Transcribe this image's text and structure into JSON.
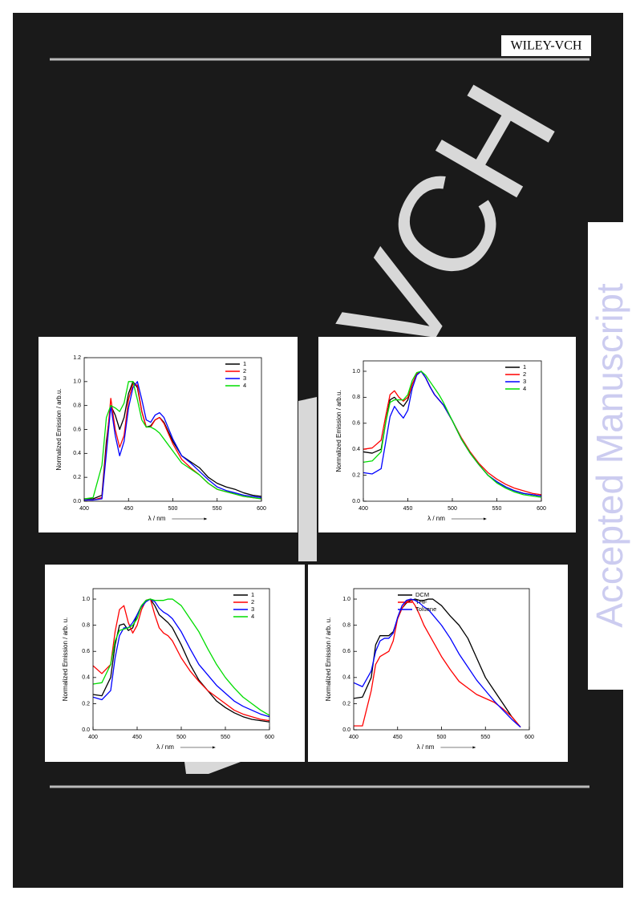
{
  "header": {
    "publisher": "WILEY-VCH"
  },
  "watermark": {
    "side": "Accepted Manuscript",
    "diagonal": "VCH"
  },
  "chart_data": [
    {
      "type": "line",
      "xlabel": "λ / nm",
      "ylabel": "Normalized Emission / arb.u.",
      "legend": "upper right",
      "xlim": [
        400,
        600
      ],
      "xticks": [
        400,
        450,
        500,
        550,
        600
      ],
      "ylim": [
        0,
        1.2
      ],
      "yticks": [
        {
          "value": 0,
          "label": "0.0"
        },
        0.2,
        0.4,
        0.6,
        0.8,
        {
          "value": 1,
          "label": "1.0"
        },
        1.2
      ],
      "x": [
        400,
        410,
        420,
        425,
        430,
        435,
        440,
        445,
        450,
        455,
        460,
        465,
        470,
        475,
        480,
        485,
        490,
        500,
        510,
        520,
        530,
        540,
        550,
        560,
        570,
        580,
        590,
        600
      ],
      "series": [
        {
          "name": "1",
          "color": "#000000",
          "values": [
            0.02,
            0.02,
            0.05,
            0.5,
            0.8,
            0.72,
            0.6,
            0.7,
            0.9,
            1.0,
            0.95,
            0.75,
            0.62,
            0.63,
            0.68,
            0.7,
            0.66,
            0.5,
            0.38,
            0.33,
            0.28,
            0.2,
            0.15,
            0.12,
            0.1,
            0.07,
            0.05,
            0.04
          ]
        },
        {
          "name": "2",
          "color": "#ff0000",
          "values": [
            0.01,
            0.01,
            0.03,
            0.45,
            0.86,
            0.6,
            0.45,
            0.55,
            0.85,
            0.98,
            0.97,
            0.75,
            0.62,
            0.62,
            0.68,
            0.7,
            0.65,
            0.48,
            0.35,
            0.28,
            0.22,
            0.15,
            0.1,
            0.08,
            0.06,
            0.04,
            0.03,
            0.02
          ]
        },
        {
          "name": "3",
          "color": "#0000ff",
          "values": [
            0.01,
            0.01,
            0.02,
            0.4,
            0.8,
            0.55,
            0.38,
            0.5,
            0.78,
            0.95,
            1.0,
            0.85,
            0.68,
            0.66,
            0.72,
            0.74,
            0.7,
            0.52,
            0.38,
            0.32,
            0.25,
            0.18,
            0.12,
            0.09,
            0.07,
            0.05,
            0.04,
            0.03
          ]
        },
        {
          "name": "4",
          "color": "#00dd00",
          "values": [
            0.02,
            0.03,
            0.3,
            0.7,
            0.8,
            0.78,
            0.75,
            0.82,
            1.0,
            1.0,
            0.85,
            0.68,
            0.62,
            0.62,
            0.6,
            0.57,
            0.52,
            0.42,
            0.32,
            0.27,
            0.22,
            0.15,
            0.1,
            0.08,
            0.06,
            0.04,
            0.03,
            0.02
          ]
        }
      ]
    },
    {
      "type": "line",
      "xlabel": "λ / nm",
      "ylabel": "Normalized Emission / arb.u.",
      "legend": "upper right",
      "xlim": [
        400,
        600
      ],
      "xticks": [
        400,
        450,
        500,
        550,
        600
      ],
      "ylim": [
        0,
        1.08
      ],
      "yticks": [
        {
          "value": 0,
          "label": "0.0"
        },
        0.2,
        0.4,
        0.6,
        0.8,
        {
          "value": 1,
          "label": "1.0"
        }
      ],
      "x": [
        400,
        410,
        420,
        425,
        430,
        435,
        440,
        445,
        450,
        455,
        460,
        465,
        470,
        475,
        480,
        485,
        490,
        500,
        510,
        520,
        530,
        540,
        550,
        560,
        570,
        580,
        590,
        600
      ],
      "series": [
        {
          "name": "1",
          "color": "#000000",
          "values": [
            0.38,
            0.37,
            0.4,
            0.6,
            0.78,
            0.8,
            0.76,
            0.73,
            0.78,
            0.9,
            0.98,
            1.0,
            0.95,
            0.88,
            0.82,
            0.78,
            0.74,
            0.62,
            0.48,
            0.37,
            0.28,
            0.2,
            0.15,
            0.11,
            0.08,
            0.06,
            0.05,
            0.04
          ]
        },
        {
          "name": "2",
          "color": "#ff0000",
          "values": [
            0.4,
            0.41,
            0.47,
            0.65,
            0.82,
            0.85,
            0.8,
            0.77,
            0.8,
            0.9,
            0.98,
            1.0,
            0.95,
            0.88,
            0.82,
            0.78,
            0.74,
            0.62,
            0.49,
            0.38,
            0.29,
            0.22,
            0.17,
            0.13,
            0.1,
            0.08,
            0.06,
            0.05
          ]
        },
        {
          "name": "3",
          "color": "#0000ff",
          "values": [
            0.22,
            0.21,
            0.25,
            0.45,
            0.65,
            0.73,
            0.68,
            0.64,
            0.7,
            0.87,
            0.97,
            1.0,
            0.95,
            0.88,
            0.82,
            0.78,
            0.74,
            0.62,
            0.48,
            0.37,
            0.28,
            0.2,
            0.15,
            0.11,
            0.08,
            0.06,
            0.05,
            0.04
          ]
        },
        {
          "name": "4",
          "color": "#00dd00",
          "values": [
            0.3,
            0.31,
            0.38,
            0.6,
            0.76,
            0.78,
            0.78,
            0.78,
            0.82,
            0.93,
            0.99,
            1.0,
            0.97,
            0.92,
            0.87,
            0.82,
            0.76,
            0.62,
            0.48,
            0.37,
            0.28,
            0.2,
            0.14,
            0.1,
            0.07,
            0.05,
            0.04,
            0.03
          ]
        }
      ]
    },
    {
      "type": "line",
      "xlabel": "λ / nm",
      "ylabel": "Normalized Emission / arb. u.",
      "legend": "upper right",
      "xlim": [
        400,
        600
      ],
      "xticks": [
        400,
        450,
        500,
        550,
        600
      ],
      "ylim": [
        0,
        1.08
      ],
      "yticks": [
        {
          "value": 0,
          "label": "0.0"
        },
        0.2,
        0.4,
        0.6,
        0.8,
        {
          "value": 1,
          "label": "1.0"
        }
      ],
      "x": [
        400,
        410,
        420,
        425,
        430,
        435,
        440,
        445,
        450,
        455,
        460,
        465,
        470,
        475,
        480,
        485,
        490,
        500,
        510,
        520,
        530,
        540,
        550,
        560,
        570,
        580,
        590,
        600
      ],
      "series": [
        {
          "name": "1",
          "color": "#000000",
          "values": [
            0.27,
            0.26,
            0.4,
            0.65,
            0.8,
            0.81,
            0.76,
            0.78,
            0.88,
            0.95,
            0.99,
            1.0,
            0.95,
            0.88,
            0.85,
            0.82,
            0.78,
            0.65,
            0.5,
            0.38,
            0.3,
            0.22,
            0.17,
            0.13,
            0.1,
            0.08,
            0.07,
            0.06
          ]
        },
        {
          "name": "2",
          "color": "#ff0000",
          "values": [
            0.49,
            0.43,
            0.5,
            0.75,
            0.92,
            0.95,
            0.82,
            0.74,
            0.8,
            0.92,
            0.99,
            1.0,
            0.88,
            0.78,
            0.74,
            0.72,
            0.68,
            0.55,
            0.45,
            0.37,
            0.3,
            0.25,
            0.2,
            0.15,
            0.12,
            0.1,
            0.08,
            0.07
          ]
        },
        {
          "name": "3",
          "color": "#0000ff",
          "values": [
            0.25,
            0.23,
            0.3,
            0.55,
            0.72,
            0.78,
            0.78,
            0.82,
            0.88,
            0.94,
            0.98,
            1.0,
            0.98,
            0.93,
            0.9,
            0.88,
            0.85,
            0.75,
            0.62,
            0.5,
            0.42,
            0.34,
            0.28,
            0.22,
            0.18,
            0.15,
            0.12,
            0.1
          ]
        },
        {
          "name": "4",
          "color": "#00dd00",
          "values": [
            0.35,
            0.36,
            0.5,
            0.68,
            0.76,
            0.77,
            0.78,
            0.8,
            0.85,
            0.95,
            0.99,
            1.0,
            0.99,
            0.99,
            0.99,
            1.0,
            1.0,
            0.95,
            0.85,
            0.75,
            0.62,
            0.5,
            0.4,
            0.32,
            0.25,
            0.2,
            0.15,
            0.11
          ]
        }
      ]
    },
    {
      "type": "line",
      "xlabel": "λ / nm",
      "ylabel": "Normalized Emission / arb. u.",
      "legend": "upper left",
      "xlim": [
        400,
        600
      ],
      "xticks": [
        400,
        450,
        500,
        550,
        600
      ],
      "ylim": [
        0,
        1.08
      ],
      "yticks": [
        {
          "value": 0,
          "label": "0.0"
        },
        0.2,
        0.4,
        0.6,
        0.8,
        {
          "value": 1,
          "label": "1.0"
        }
      ],
      "x": [
        400,
        410,
        420,
        425,
        430,
        435,
        440,
        445,
        450,
        455,
        460,
        465,
        470,
        475,
        480,
        485,
        490,
        500,
        510,
        520,
        530,
        540,
        550,
        560,
        570,
        580,
        590,
        600
      ],
      "series": [
        {
          "name": "DCM",
          "color": "#000000",
          "values": [
            0.24,
            0.25,
            0.4,
            0.65,
            0.72,
            0.72,
            0.72,
            0.75,
            0.85,
            0.93,
            0.97,
            0.99,
            1.0,
            0.99,
            0.99,
            1.0,
            1.0,
            0.95,
            0.87,
            0.8,
            0.7,
            0.55,
            0.4,
            0.3,
            0.2,
            0.1,
            0.02,
            null
          ]
        },
        {
          "name": "THF",
          "color": "#ff0000",
          "values": [
            0.03,
            0.03,
            0.3,
            0.5,
            0.56,
            0.58,
            0.6,
            0.68,
            0.85,
            0.93,
            0.98,
            1.0,
            0.95,
            0.88,
            0.8,
            0.74,
            0.68,
            0.56,
            0.46,
            0.37,
            0.32,
            0.27,
            0.24,
            0.21,
            0.16,
            0.1,
            0.02,
            null
          ]
        },
        {
          "name": "Toluene",
          "color": "#0000ff",
          "values": [
            0.36,
            0.33,
            0.45,
            0.6,
            0.68,
            0.7,
            0.7,
            0.74,
            0.86,
            0.95,
            0.99,
            1.0,
            0.99,
            0.97,
            0.94,
            0.92,
            0.88,
            0.8,
            0.7,
            0.58,
            0.48,
            0.38,
            0.3,
            0.22,
            0.15,
            0.08,
            0.02,
            null
          ]
        }
      ]
    }
  ]
}
